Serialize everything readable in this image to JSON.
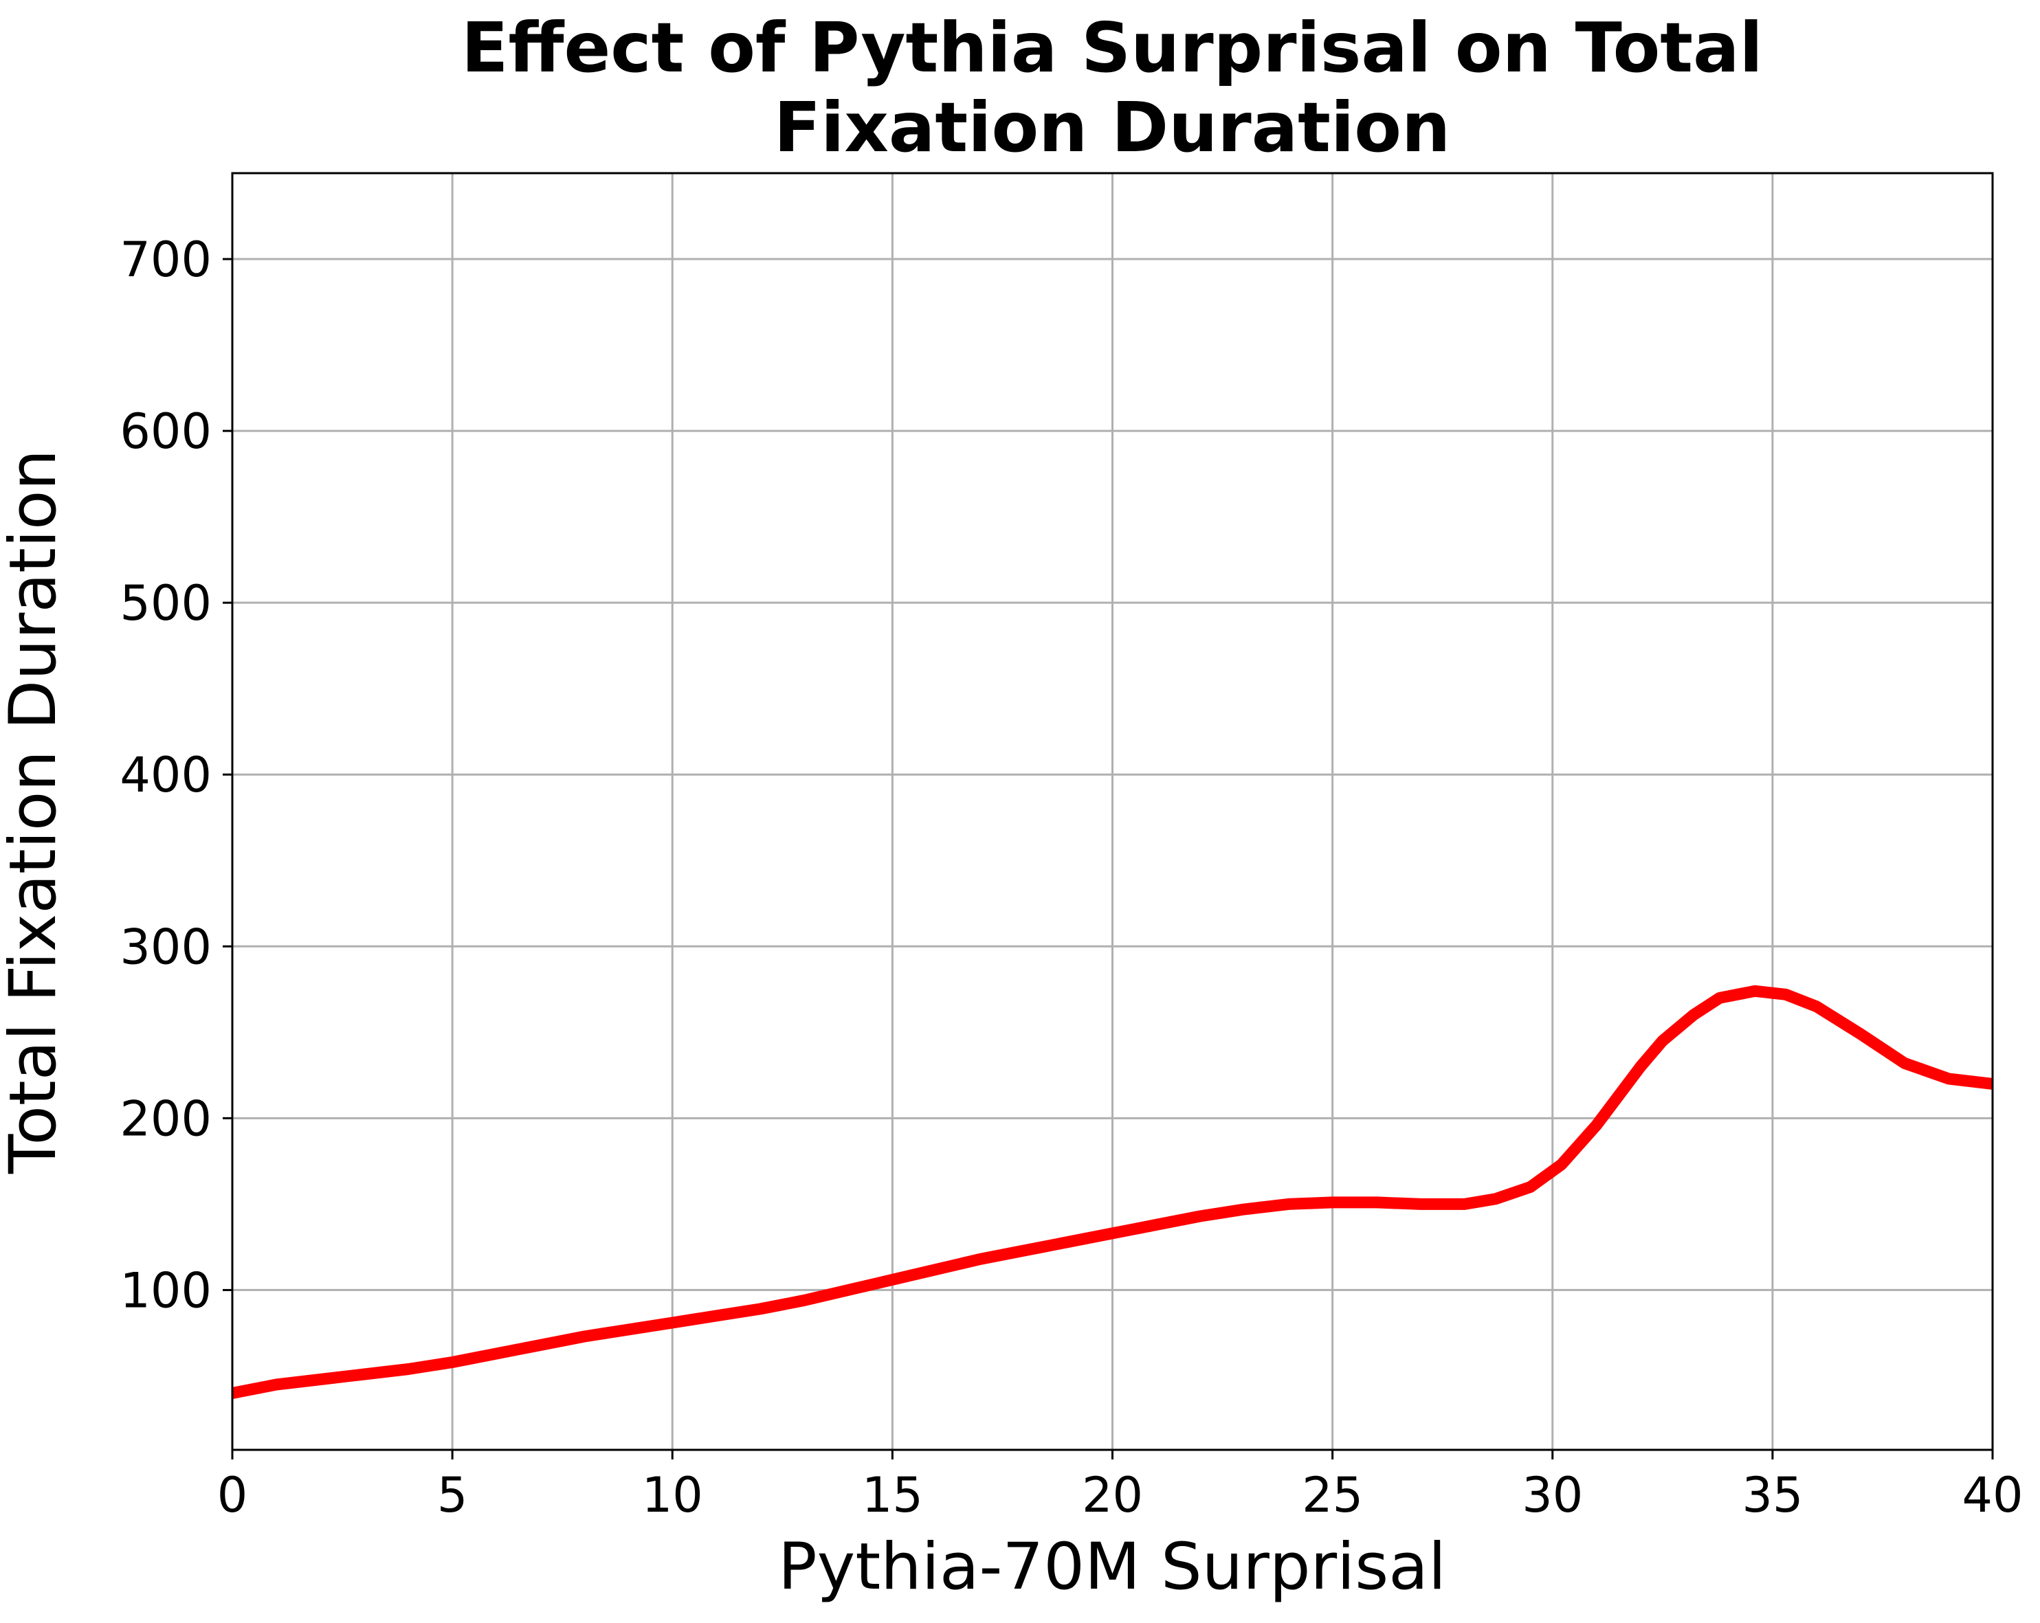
{
  "chart_data": {
    "type": "line",
    "title_lines": [
      "Effect of Pythia Surprisal on Total",
      "Fixation Duration"
    ],
    "xlabel": "Pythia-70M Surprisal",
    "ylabel": "Total Fixation Duration",
    "xlim": [
      0,
      40
    ],
    "ylim": [
      7,
      750
    ],
    "grid": true,
    "xticks": [
      0,
      5,
      10,
      15,
      20,
      25,
      30,
      35,
      40
    ],
    "yticks": [
      100,
      200,
      300,
      400,
      500,
      600,
      700
    ],
    "series": [
      {
        "color": "#ff0000",
        "x": [
          0,
          1,
          2,
          3,
          4,
          5,
          6,
          7,
          8,
          9,
          10,
          11,
          12,
          13,
          14,
          15,
          16,
          17,
          18,
          19,
          20,
          21,
          22,
          23,
          24,
          25,
          26,
          27,
          28,
          28.7,
          29.5,
          30.2,
          31,
          32,
          32.5,
          33.2,
          33.8,
          34.6,
          35.3,
          36,
          37,
          38,
          39,
          40
        ],
        "y": [
          40,
          45,
          48,
          51,
          54,
          58,
          63,
          68,
          73,
          77,
          81,
          85,
          89,
          94,
          100,
          106,
          112,
          118,
          123,
          128,
          133,
          138,
          143,
          147,
          150,
          151,
          151,
          150,
          150,
          153,
          160,
          173,
          196,
          230,
          245,
          260,
          270,
          274,
          272,
          265,
          249,
          232,
          223,
          220
        ]
      }
    ]
  }
}
